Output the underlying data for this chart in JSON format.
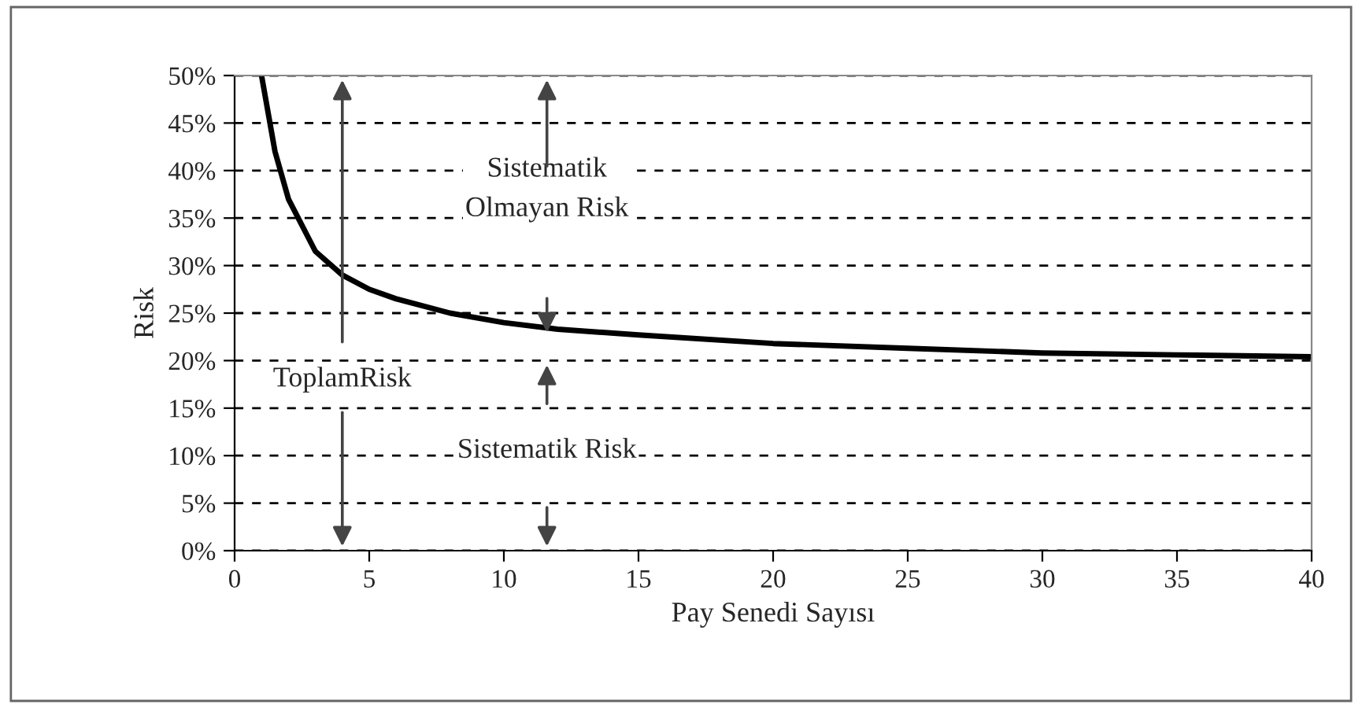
{
  "chart_data": {
    "type": "line",
    "xlabel": "Pay Senedi Sayısı",
    "ylabel": "Risk",
    "x": [
      1,
      1.5,
      2,
      3,
      4,
      5,
      6,
      8,
      10,
      12,
      15,
      20,
      25,
      30,
      35,
      40
    ],
    "series": [
      {
        "color": "#000000",
        "values": [
          50,
          42,
          37,
          31.5,
          29,
          27.5,
          26.5,
          25,
          24,
          23.3,
          22.7,
          21.8,
          21.3,
          20.8,
          20.6,
          20.4
        ]
      }
    ],
    "xlim": [
      0,
      40
    ],
    "xticks": [
      0,
      5,
      10,
      15,
      20,
      25,
      30,
      35,
      40
    ],
    "ylim": [
      0,
      50
    ],
    "yticks": [
      {
        "value": 0,
        "label": "0%"
      },
      {
        "value": 5,
        "label": "5%"
      },
      {
        "value": 10,
        "label": "10%"
      },
      {
        "value": 15,
        "label": "15%"
      },
      {
        "value": 20,
        "label": "20%"
      },
      {
        "value": 25,
        "label": "25%"
      },
      {
        "value": 30,
        "label": "30%"
      },
      {
        "value": 35,
        "label": "35%"
      },
      {
        "value": 40,
        "label": "40%"
      },
      {
        "value": 45,
        "label": "45%"
      },
      {
        "value": 50,
        "label": "50%"
      }
    ],
    "grid": "y",
    "legend": false,
    "marker": "none",
    "line_style": "solid",
    "annotations": [
      "Sistematik\nOlmayan Risk",
      "ToplamRisk",
      "Sistematik Risk"
    ]
  }
}
